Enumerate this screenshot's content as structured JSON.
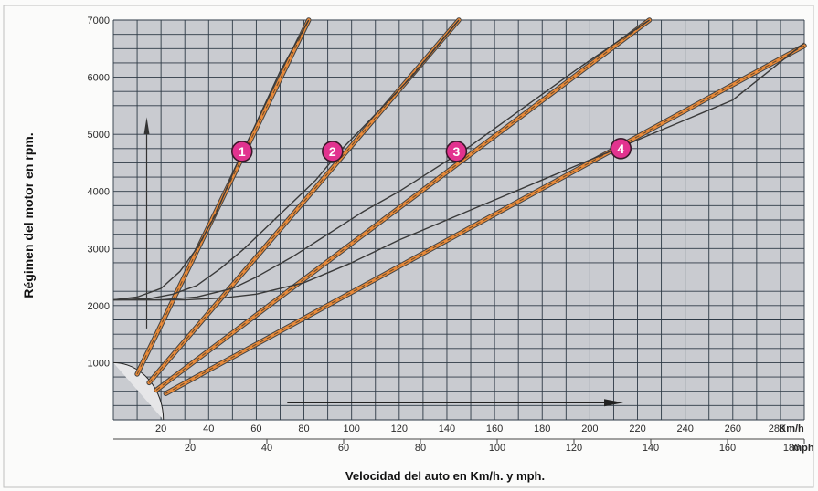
{
  "chart_data": {
    "type": "line",
    "title": "",
    "ylabel": "Régimen del motor en rpm.",
    "xlabel": "Velocidad del auto en Km/h. y mph.",
    "y_ticks": [
      "1000",
      "2000",
      "3000",
      "4000",
      "5000",
      "6000",
      "7000"
    ],
    "ylim": [
      0,
      7000
    ],
    "x_kmh": {
      "unit": "Km/h",
      "range": [
        0,
        290
      ],
      "ticks": [
        "20",
        "40",
        "60",
        "80",
        "100",
        "120",
        "140",
        "160",
        "180",
        "200",
        "220",
        "240",
        "260",
        "280"
      ]
    },
    "x_mph": {
      "unit": "mph",
      "range": [
        0,
        180
      ],
      "ticks": [
        "20",
        "40",
        "60",
        "80",
        "100",
        "120",
        "140",
        "160",
        "180"
      ]
    },
    "grid": true,
    "colors": {
      "plot_background": "#c9cbd0",
      "grid": "#2e3a46",
      "curve": "#3a3a3a",
      "straight_line": "#e88a3a",
      "marker_fill": "#e2338f"
    },
    "series": [
      {
        "name": "1",
        "curve_x": [
          0,
          10,
          20,
          28,
          35,
          43,
          51,
          60,
          70,
          82
        ],
        "curve_y": [
          2100,
          2150,
          2300,
          2600,
          3000,
          3600,
          4400,
          5200,
          6100,
          7000
        ],
        "line_x": [
          10,
          82
        ],
        "line_y": [
          800,
          7000
        ]
      },
      {
        "name": "2",
        "curve_x": [
          0,
          15,
          25,
          35,
          45,
          55,
          65,
          75,
          85,
          95,
          110,
          125,
          145
        ],
        "curve_y": [
          2100,
          2120,
          2200,
          2350,
          2650,
          3000,
          3400,
          3800,
          4200,
          4700,
          5350,
          6000,
          7000
        ],
        "line_x": [
          15,
          145
        ],
        "line_y": [
          650,
          7000
        ]
      },
      {
        "name": "3",
        "curve_x": [
          0,
          20,
          35,
          50,
          60,
          75,
          90,
          105,
          120,
          135,
          150,
          170,
          195,
          225
        ],
        "curve_y": [
          2100,
          2100,
          2150,
          2300,
          2500,
          2850,
          3250,
          3650,
          4000,
          4400,
          4800,
          5400,
          6150,
          7000
        ],
        "line_x": [
          18,
          225
        ],
        "line_y": [
          520,
          7000
        ]
      },
      {
        "name": "4",
        "curve_x": [
          0,
          30,
          45,
          60,
          80,
          100,
          120,
          140,
          160,
          180,
          200,
          220,
          240,
          260,
          290
        ],
        "curve_y": [
          2100,
          2100,
          2130,
          2200,
          2400,
          2750,
          3150,
          3500,
          3850,
          4200,
          4550,
          4900,
          5250,
          5600,
          6600
        ],
        "line_x": [
          22,
          290
        ],
        "line_y": [
          460,
          6550
        ]
      }
    ],
    "markers": [
      {
        "label": "1",
        "x": 54,
        "y": 4700
      },
      {
        "label": "2",
        "x": 92,
        "y": 4700
      },
      {
        "label": "3",
        "x": 144,
        "y": 4700
      },
      {
        "label": "4",
        "x": 213,
        "y": 4750
      }
    ]
  }
}
